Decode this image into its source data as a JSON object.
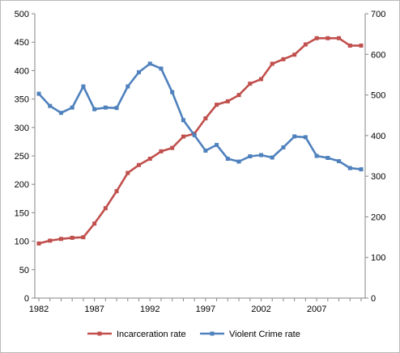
{
  "chart_data": {
    "type": "line",
    "x": [
      1982,
      1983,
      1984,
      1985,
      1986,
      1987,
      1988,
      1989,
      1990,
      1991,
      1992,
      1993,
      1994,
      1995,
      1996,
      1997,
      1998,
      1999,
      2000,
      2001,
      2002,
      2003,
      2004,
      2005,
      2006,
      2007,
      2008,
      2009,
      2010,
      2011
    ],
    "x_tick_labels": [
      "1982",
      "1987",
      "1992",
      "1997",
      "2002",
      "2007"
    ],
    "x_tick_values": [
      1982,
      1987,
      1992,
      1997,
      2002,
      2007
    ],
    "series": [
      {
        "name": "Incarceration rate",
        "axis": "left",
        "color": "#c0504d",
        "marker": "square",
        "values": [
          96,
          101,
          104,
          106,
          107,
          131,
          158,
          188,
          220,
          234,
          245,
          258,
          264,
          284,
          289,
          316,
          340,
          346,
          357,
          377,
          385,
          412,
          420,
          428,
          446,
          457,
          457,
          457,
          444,
          444
        ]
      },
      {
        "name": "Violent Crime rate",
        "axis": "right",
        "color": "#4f81bd",
        "marker": "square",
        "values": [
          503,
          473,
          456,
          469,
          521,
          465,
          469,
          468,
          521,
          556,
          577,
          565,
          507,
          438,
          401,
          363,
          377,
          343,
          336,
          349,
          352,
          346,
          371,
          398,
          396,
          350,
          345,
          337,
          320,
          317
        ]
      }
    ],
    "y_left": {
      "min": 0,
      "max": 500,
      "step": 50,
      "tick_labels": [
        "0",
        "50",
        "100",
        "150",
        "200",
        "250",
        "300",
        "350",
        "400",
        "450",
        "500"
      ]
    },
    "y_right": {
      "min": 0,
      "max": 700,
      "step": 100,
      "tick_labels": [
        "0",
        "100",
        "200",
        "300",
        "400",
        "500",
        "600",
        "700"
      ]
    },
    "grid": false,
    "legend": "bottom",
    "title": "",
    "xlabel": "",
    "ylabel": ""
  }
}
